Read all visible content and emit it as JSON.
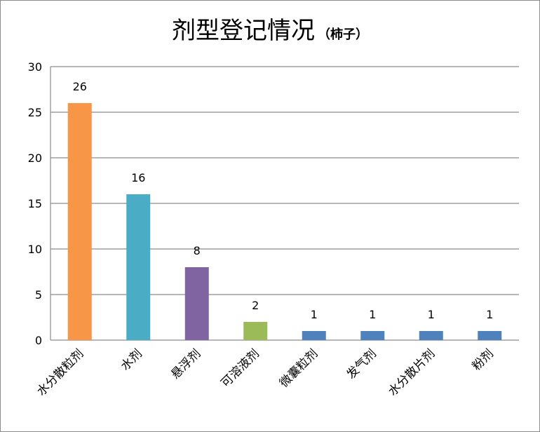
{
  "chart_data": {
    "type": "bar",
    "title": "剂型登记情况",
    "subtitle": "（柿子）",
    "categories": [
      "水分散粒剂",
      "水剂",
      "悬浮剂",
      "可溶液剂",
      "微囊粒剂",
      "发气剂",
      "水分散片剂",
      "粉剂"
    ],
    "values": [
      26,
      16,
      8,
      2,
      1,
      1,
      1,
      1
    ],
    "colors": [
      "#f79646",
      "#4bacc6",
      "#8064a2",
      "#9bbb59",
      "#4f81bd",
      "#4f81bd",
      "#4f81bd",
      "#4f81bd"
    ],
    "ylim": [
      0,
      30
    ],
    "yticks": [
      0,
      5,
      10,
      15,
      20,
      25,
      30
    ],
    "xlabel": "",
    "ylabel": "",
    "grid": true,
    "data_labels": true
  }
}
